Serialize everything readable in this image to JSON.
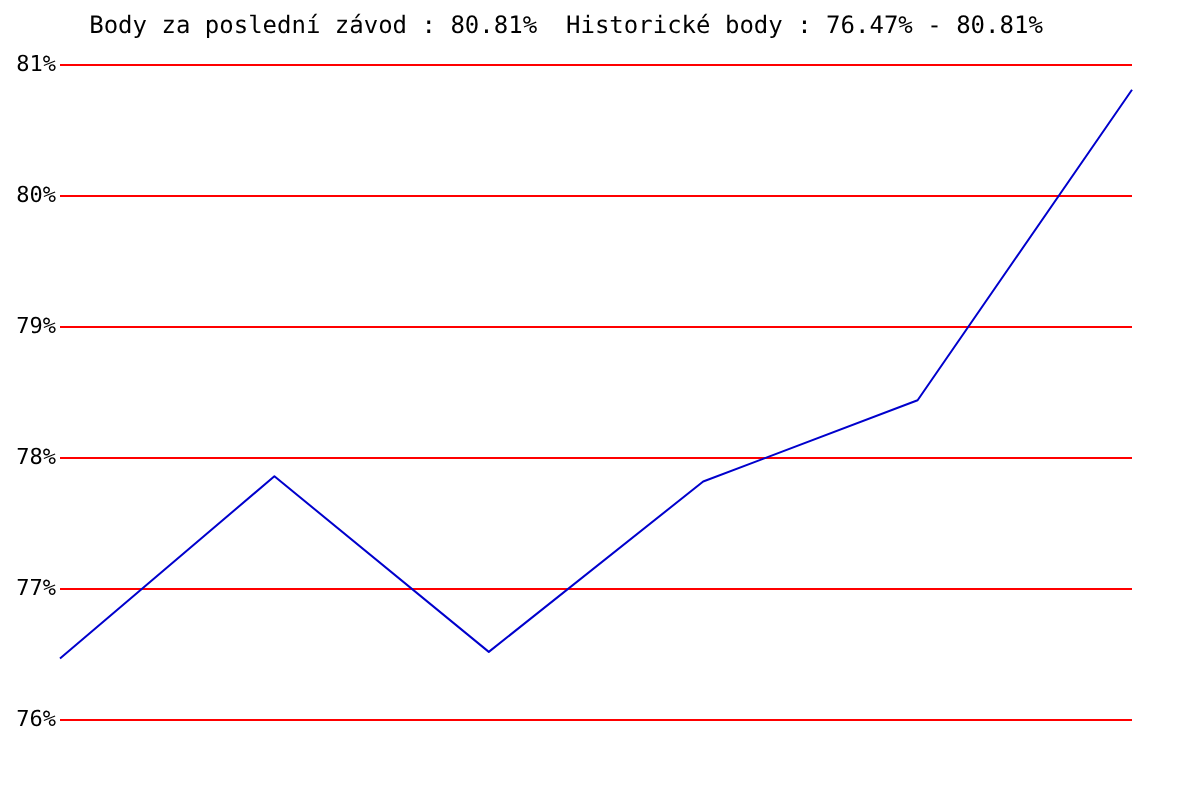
{
  "chart_data": {
    "type": "line",
    "title": "Body za poslední závod : 80.81%  Historické body : 76.47% - 80.81%",
    "categories": [
      null,
      null,
      null,
      null,
      null,
      null
    ],
    "series": [
      {
        "color": "#0000cc",
        "values": [
          76.47,
          77.86,
          76.52,
          77.82,
          78.44,
          80.81
        ]
      }
    ],
    "ylim": [
      76,
      81
    ],
    "yticks": [
      {
        "value": 76,
        "label": "76%"
      },
      {
        "value": 77,
        "label": "77%"
      },
      {
        "value": 78,
        "label": "78%"
      },
      {
        "value": 79,
        "label": "79%"
      },
      {
        "value": 80,
        "label": "80%"
      },
      {
        "value": 81,
        "label": "81%"
      }
    ],
    "grid": "y",
    "tick_labels": "y",
    "legend": false,
    "marker": "none",
    "line_style": "solid"
  }
}
